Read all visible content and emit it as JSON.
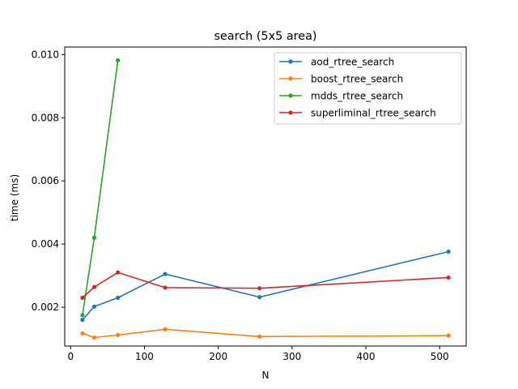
{
  "chart_data": {
    "type": "line",
    "title": "search (5x5 area)",
    "xlabel": "N",
    "ylabel": "time (ms)",
    "xlim": [
      -8,
      536
    ],
    "ylim": [
      0.00077,
      0.01024
    ],
    "xticks": [
      0,
      100,
      200,
      300,
      400,
      500
    ],
    "xtick_labels": [
      "0",
      "100",
      "200",
      "300",
      "400",
      "500"
    ],
    "yticks": [
      0.002,
      0.004,
      0.006,
      0.008,
      0.01
    ],
    "ytick_labels": [
      "0.002",
      "0.004",
      "0.006",
      "0.008",
      "0.010"
    ],
    "grid": false,
    "legend_position": "top-right",
    "series": [
      {
        "name": "aod_rtree_search",
        "color": "#1f77b4",
        "x": [
          16,
          32,
          64,
          128,
          256,
          512
        ],
        "y": [
          0.0016,
          0.00202,
          0.0023,
          0.00305,
          0.00232,
          0.00376
        ]
      },
      {
        "name": "boost_rtree_search",
        "color": "#ff7f0e",
        "x": [
          16,
          32,
          64,
          128,
          256,
          512
        ],
        "y": [
          0.00117,
          0.00104,
          0.00112,
          0.0013,
          0.00107,
          0.0011
        ]
      },
      {
        "name": "mdds_rtree_search",
        "color": "#2ca02c",
        "x": [
          16,
          32,
          64
        ],
        "y": [
          0.00175,
          0.0042,
          0.00982
        ]
      },
      {
        "name": "superliminal_rtree_search",
        "color": "#d62728",
        "x": [
          16,
          32,
          64,
          128,
          256,
          512
        ],
        "y": [
          0.0023,
          0.00264,
          0.0031,
          0.00262,
          0.0026,
          0.00294
        ]
      }
    ]
  }
}
